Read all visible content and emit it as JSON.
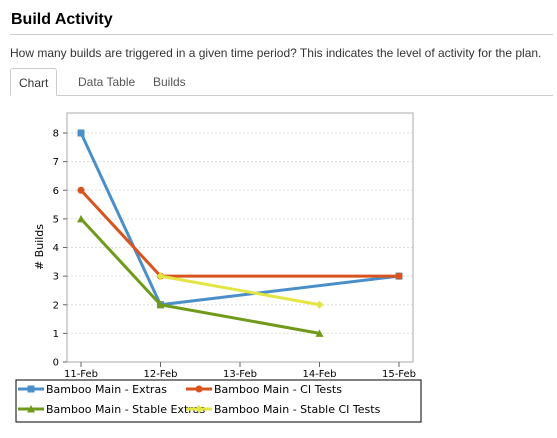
{
  "page": {
    "title": "Build Activity",
    "description": "How many builds are triggered in a given time period? This indicates the level of activity for the plan."
  },
  "tabs": [
    {
      "label": "Chart",
      "active": true
    },
    {
      "label": "Data Table",
      "active": false
    },
    {
      "label": "Builds",
      "active": false
    }
  ],
  "chart_data": {
    "type": "line",
    "x": [
      "11-Feb",
      "12-Feb",
      "13-Feb",
      "14-Feb",
      "15-Feb"
    ],
    "ylabel": "# Builds",
    "ylim": [
      0,
      8
    ],
    "yticks": [
      0,
      1,
      2,
      3,
      4,
      5,
      6,
      7,
      8
    ],
    "grid": true,
    "legend_position": "bottom",
    "series": [
      {
        "name": "Bamboo Main - Extras",
        "color": "#4a8fc9",
        "marker": "square",
        "points": [
          {
            "x": "11-Feb",
            "y": 8
          },
          {
            "x": "12-Feb",
            "y": 2
          },
          {
            "x": "15-Feb",
            "y": 3
          }
        ]
      },
      {
        "name": "Bamboo Main - CI Tests",
        "color": "#d9531e",
        "marker": "circle",
        "points": [
          {
            "x": "11-Feb",
            "y": 6
          },
          {
            "x": "12-Feb",
            "y": 3
          },
          {
            "x": "15-Feb",
            "y": 3
          }
        ]
      },
      {
        "name": "Bamboo Main - Stable Extras",
        "color": "#709b1a",
        "marker": "triangle",
        "points": [
          {
            "x": "11-Feb",
            "y": 5
          },
          {
            "x": "12-Feb",
            "y": 2
          },
          {
            "x": "14-Feb",
            "y": 1
          }
        ]
      },
      {
        "name": "Bamboo Main - Stable CI Tests",
        "color": "#e3e544",
        "marker": "diamond",
        "points": [
          {
            "x": "12-Feb",
            "y": 3
          },
          {
            "x": "14-Feb",
            "y": 2
          }
        ]
      }
    ]
  }
}
